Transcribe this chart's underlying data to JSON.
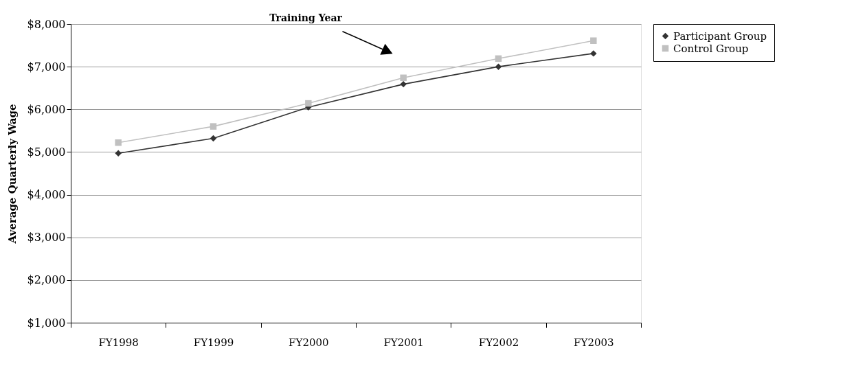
{
  "chart_data": {
    "type": "line",
    "ylabel": "Average Quarterly Wage",
    "annotations": [
      "Training Year"
    ],
    "categories": [
      "FY1998",
      "FY1999",
      "FY2000",
      "FY2001",
      "FY2002",
      "FY2003"
    ],
    "series": [
      {
        "name": "Participant Group",
        "color": "#333333",
        "marker": "diamond",
        "values": [
          4970,
          5320,
          6050,
          6590,
          7000,
          7310
        ]
      },
      {
        "name": "Control Group",
        "color": "#c0c0c0",
        "marker": "square",
        "values": [
          5220,
          5600,
          6140,
          6740,
          7190,
          7610
        ]
      }
    ],
    "ylim": [
      1000,
      8000
    ],
    "yticks": [
      {
        "value": 1000,
        "label": "$1,000"
      },
      {
        "value": 2000,
        "label": "$2,000"
      },
      {
        "value": 3000,
        "label": "$3,000"
      },
      {
        "value": 4000,
        "label": "$4,000"
      },
      {
        "value": 5000,
        "label": "$5,000"
      },
      {
        "value": 6000,
        "label": "$6,000"
      },
      {
        "value": 7000,
        "label": "$7,000"
      },
      {
        "value": 8000,
        "label": "$8,000"
      }
    ],
    "grid": "y",
    "legend": "right",
    "line_style": "solid"
  }
}
